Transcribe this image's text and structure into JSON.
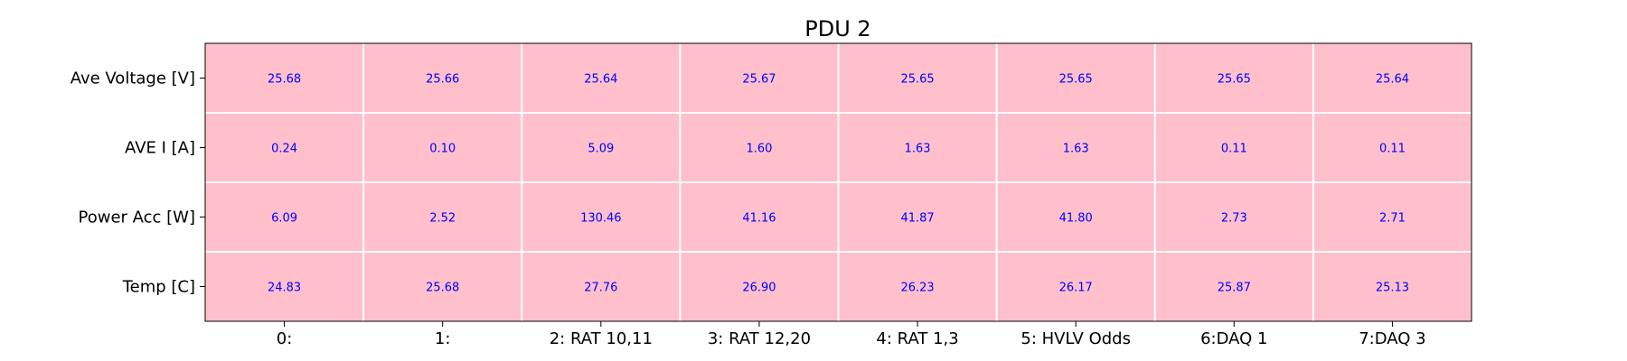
{
  "chart_data": {
    "type": "heatmap",
    "title": "PDU 2",
    "rows": [
      "Ave Voltage [V]",
      "AVE I [A]",
      "Power Acc [W]",
      "Temp [C]"
    ],
    "columns": [
      "0:",
      "1:",
      "2: RAT 10,11",
      "3: RAT 12,20",
      "4: RAT 1,3",
      "5: HVLV Odds",
      "6:DAQ 1",
      "7:DAQ 3"
    ],
    "values": [
      [
        "25.68",
        "25.66",
        "25.64",
        "25.67",
        "25.65",
        "25.65",
        "25.65",
        "25.64"
      ],
      [
        "0.24",
        "0.10",
        "5.09",
        "1.60",
        "1.63",
        "1.63",
        "0.11",
        "0.11"
      ],
      [
        "6.09",
        "2.52",
        "130.46",
        "41.16",
        "41.87",
        "41.80",
        "2.73",
        "2.71"
      ],
      [
        "24.83",
        "25.68",
        "27.76",
        "26.90",
        "26.23",
        "26.17",
        "25.87",
        "25.13"
      ]
    ],
    "cell_color": "#ffc0cb",
    "grid_color": "#ffffff",
    "value_color": "#0000ff",
    "grid": true
  }
}
